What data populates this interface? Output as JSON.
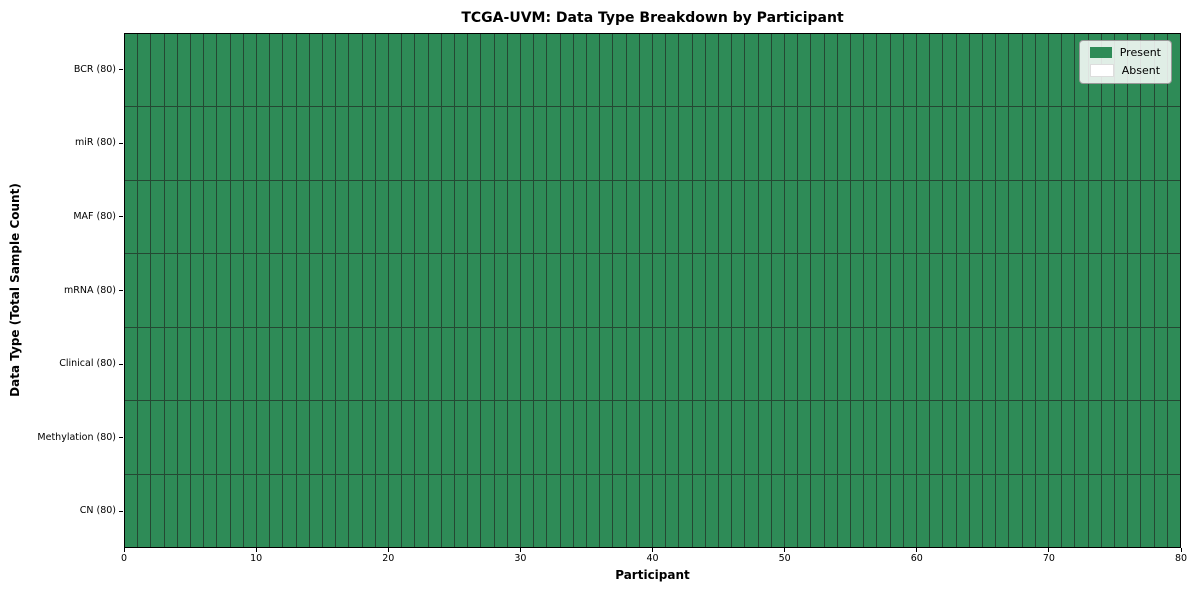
{
  "chart_data": {
    "type": "heatmap",
    "title": "TCGA-UVM: Data Type Breakdown by Participant",
    "xlabel": "Participant",
    "ylabel": "Data Type (Total Sample Count)",
    "n_participants": 80,
    "xlim": [
      0,
      80
    ],
    "x_ticks": [
      0,
      10,
      20,
      30,
      40,
      50,
      60,
      70,
      80
    ],
    "rows": [
      {
        "label": "BCR (80)",
        "present": 80,
        "absent": 0
      },
      {
        "label": "miR (80)",
        "present": 80,
        "absent": 0
      },
      {
        "label": "MAF (80)",
        "present": 80,
        "absent": 0
      },
      {
        "label": "mRNA (80)",
        "present": 80,
        "absent": 0
      },
      {
        "label": "Clinical (80)",
        "present": 80,
        "absent": 0
      },
      {
        "label": "Methylation (80)",
        "present": 80,
        "absent": 0
      },
      {
        "label": "CN (80)",
        "present": 80,
        "absent": 0
      }
    ],
    "legend": {
      "position": "upper right",
      "entries": [
        {
          "label": "Present",
          "color": "#2e8b57"
        },
        {
          "label": "Absent",
          "color": "#ffffff"
        }
      ]
    },
    "colors": {
      "present": "#2e8b57",
      "absent": "#ffffff",
      "grid_line": "#244833",
      "axis": "#000000"
    },
    "grid": "cell-borders-on",
    "all_cells_present": true
  }
}
